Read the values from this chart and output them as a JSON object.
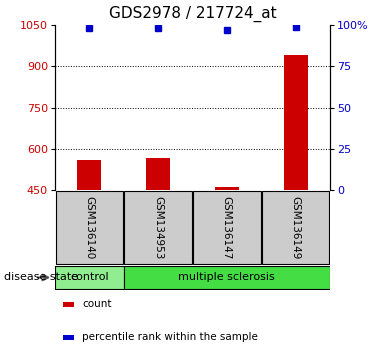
{
  "title": "GDS2978 / 217724_at",
  "samples": [
    "GSM136140",
    "GSM134953",
    "GSM136147",
    "GSM136149"
  ],
  "bar_values": [
    560,
    565,
    462,
    940
  ],
  "percentile_values": [
    98,
    98,
    97,
    99
  ],
  "ylim_left": [
    450,
    1050
  ],
  "ylim_right": [
    0,
    100
  ],
  "yticks_left": [
    450,
    600,
    750,
    900,
    1050
  ],
  "yticks_right": [
    0,
    25,
    50,
    75,
    100
  ],
  "ytick_labels_right": [
    "0",
    "25",
    "50",
    "75",
    "100%"
  ],
  "grid_values": [
    600,
    750,
    900
  ],
  "bar_color": "#cc0000",
  "percentile_color": "#0000cc",
  "bar_width": 0.35,
  "disease_state_label": "disease state",
  "group_ranges": [
    [
      -0.5,
      0.5
    ],
    [
      0.5,
      3.5
    ]
  ],
  "groups": [
    {
      "label": "control",
      "color": "#90ee90"
    },
    {
      "label": "multiple sclerosis",
      "color": "#44dd44"
    }
  ],
  "legend_items": [
    {
      "color": "#cc0000",
      "label": "count"
    },
    {
      "color": "#0000cc",
      "label": "percentile rank within the sample"
    }
  ],
  "bg_color": "#ffffff",
  "sample_box_color": "#cccccc",
  "title_fontsize": 11,
  "tick_fontsize": 8,
  "axis_label_color_left": "#cc0000",
  "axis_label_color_right": "#0000cc"
}
